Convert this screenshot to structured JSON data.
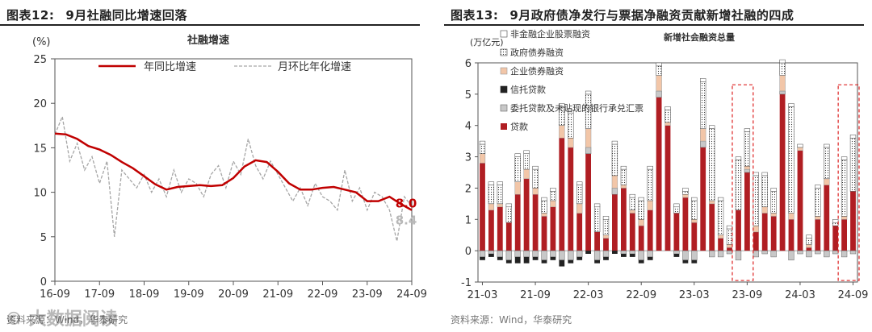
{
  "left": {
    "fig_label": "图表12:",
    "fig_title": "9月社融同比增速回落",
    "source": "资料来源：Wind，华泰研究",
    "chart_data": {
      "type": "line",
      "ylabel": "(%)",
      "subtitle": "社融增速",
      "ylim": [
        0,
        25
      ],
      "yticks": [
        0,
        5,
        10,
        15,
        20,
        25
      ],
      "xticks": [
        "16-09",
        "17-09",
        "18-09",
        "19-09",
        "20-09",
        "21-09",
        "22-09",
        "23-09",
        "24-09"
      ],
      "series": [
        {
          "name": "年同比增速",
          "color": "#c00000",
          "style": "solid",
          "x": [
            0,
            3,
            6,
            9,
            12,
            15,
            18,
            21,
            24,
            27,
            30,
            33,
            36,
            39,
            42,
            45,
            48,
            51,
            54,
            57,
            60,
            63,
            66,
            69,
            72,
            75,
            78,
            81,
            84,
            87,
            90,
            93,
            96
          ],
          "values": [
            16.6,
            16.5,
            16.0,
            15.2,
            14.8,
            14.2,
            13.4,
            12.7,
            11.8,
            10.9,
            10.3,
            10.6,
            10.7,
            10.8,
            10.7,
            10.8,
            11.6,
            12.9,
            13.6,
            13.4,
            12.3,
            11.0,
            10.3,
            10.3,
            10.5,
            10.6,
            10.3,
            10.0,
            9.0,
            9.0,
            9.5,
            8.7,
            8.0
          ]
        },
        {
          "name": "月环比年化增速",
          "color": "#a6a6a6",
          "style": "dashed",
          "x": [
            0,
            2,
            4,
            6,
            8,
            10,
            12,
            14,
            16,
            18,
            20,
            22,
            24,
            26,
            28,
            30,
            32,
            34,
            36,
            38,
            40,
            42,
            44,
            46,
            48,
            50,
            52,
            54,
            56,
            58,
            60,
            62,
            64,
            66,
            68,
            70,
            72,
            74,
            76,
            78,
            80,
            82,
            84,
            86,
            88,
            90,
            92,
            94,
            96
          ],
          "values": [
            16.5,
            18.5,
            13.5,
            15.5,
            12.5,
            14.0,
            11.0,
            13.5,
            5.0,
            12.5,
            11.5,
            10.5,
            12.0,
            10.0,
            11.5,
            9.5,
            12.5,
            10.0,
            11.5,
            11.0,
            9.5,
            12.0,
            13.0,
            10.5,
            13.5,
            12.0,
            16.0,
            13.0,
            11.5,
            13.5,
            12.0,
            10.5,
            9.0,
            10.5,
            8.5,
            11.0,
            9.5,
            9.0,
            8.0,
            12.5,
            9.0,
            10.5,
            8.0,
            10.0,
            9.5,
            8.0,
            4.5,
            9.5,
            8.4
          ]
        }
      ],
      "end_labels": [
        "8.0",
        "8.4"
      ]
    }
  },
  "right": {
    "fig_label": "图表13:",
    "fig_title": "9月政府债净发行与票据净融资贡献新增社融的四成",
    "source": "资料来源：Wind，华泰研究",
    "chart_data": {
      "type": "bar",
      "ylabel": "(万亿元)",
      "subtitle": "新增社会融资总量",
      "ylim": [
        -1,
        6
      ],
      "yticks": [
        -1,
        0,
        1,
        2,
        3,
        4,
        5,
        6
      ],
      "xticks": [
        "21-03",
        "21-09",
        "22-03",
        "22-09",
        "23-03",
        "23-09",
        "24-03",
        "24-09"
      ],
      "categories_count": 43,
      "legend": [
        "非金融企业股票融资",
        "政府债券融资",
        "企业债券融资",
        "信托贷款",
        "委托贷款及未贴现的银行承兑汇票",
        "贷款"
      ],
      "colors": {
        "loans": "#b01e23",
        "entrust": "#c8c8c8",
        "trust": "#222222",
        "corp_bond": "#f2c6a8",
        "gov_bond": "#ffffff",
        "stock": "#ffffff"
      },
      "totals": [
        3.5,
        2.0,
        2.1,
        1.4,
        2.9,
        2.8,
        2.6,
        1.7,
        2.0,
        4.5,
        4.4,
        2.2,
        5.1,
        1.3,
        1.0,
        3.3,
        2.8,
        1.8,
        1.6,
        2.7,
        5.9,
        3.7,
        1.4,
        1.9,
        1.7,
        5.4,
        4.0,
        1.6,
        0.7,
        3.0,
        3.8,
        2.5,
        2.4,
        1.9,
        6.0,
        4.6,
        3.3,
        0.4,
        2.0,
        3.3,
        0.9,
        2.9,
        3.6
      ],
      "loans": [
        2.8,
        1.3,
        1.4,
        0.9,
        1.8,
        2.3,
        1.8,
        1.1,
        1.4,
        3.6,
        3.3,
        1.2,
        3.1,
        0.6,
        0.4,
        1.8,
        2.0,
        1.2,
        0.8,
        1.3,
        4.9,
        4.0,
        1.2,
        1.7,
        0.9,
        3.3,
        1.5,
        0.4,
        0.1,
        1.3,
        2.5,
        0.6,
        1.2,
        1.1,
        5.0,
        1.0,
        3.2,
        0.1,
        1.0,
        2.1,
        0.8,
        1.0,
        1.9
      ],
      "entrust": [
        -0.2,
        -0.1,
        -0.2,
        -0.3,
        -0.2,
        -0.2,
        -0.2,
        -0.3,
        -0.2,
        -0.3,
        -0.3,
        -0.2,
        0.2,
        -0.3,
        -0.2,
        0.2,
        -0.1,
        -0.1,
        -0.3,
        -0.2,
        0.2,
        0.0,
        -0.1,
        -0.3,
        -0.3,
        0.2,
        -0.2,
        -0.2,
        -0.1,
        -0.3,
        0.1,
        -0.2,
        -0.1,
        -0.2,
        0.1,
        -0.3,
        -0.1,
        -0.2,
        -0.1,
        -0.2,
        -0.1,
        -0.2,
        -0.1
      ],
      "trust": [
        -0.1,
        -0.1,
        -0.1,
        -0.1,
        -0.2,
        -0.2,
        -0.1,
        -0.1,
        -0.1,
        -0.2,
        -0.1,
        -0.1,
        -0.1,
        -0.1,
        -0.1,
        -0.1,
        -0.1,
        -0.1,
        -0.1,
        -0.1,
        0.0,
        0.0,
        -0.1,
        -0.1,
        -0.1,
        0.0,
        0.0,
        0.0,
        0.0,
        0.0,
        0.0,
        0.0,
        0.0,
        0.0,
        0.0,
        0.0,
        0.0,
        0.0,
        0.0,
        0.0,
        0.0,
        0.0,
        0.0
      ],
      "corp_bond": [
        0.3,
        0.2,
        0.1,
        0.0,
        0.4,
        0.3,
        0.2,
        0.1,
        0.2,
        0.4,
        0.3,
        0.3,
        0.6,
        0.0,
        0.1,
        0.4,
        0.1,
        0.1,
        0.2,
        0.3,
        0.5,
        0.1,
        0.0,
        0.1,
        0.1,
        0.4,
        0.1,
        0.1,
        0.1,
        0.0,
        0.1,
        0.2,
        0.2,
        0.1,
        0.5,
        0.2,
        0.1,
        0.1,
        0.1,
        0.2,
        0.0,
        0.1,
        0.0
      ],
      "gov_bond": [
        0.3,
        0.6,
        0.6,
        0.5,
        0.8,
        0.5,
        0.6,
        0.4,
        0.3,
        0.6,
        0.8,
        0.6,
        1.1,
        0.8,
        0.5,
        1.0,
        0.5,
        0.4,
        0.6,
        1.0,
        0.3,
        0.4,
        0.2,
        0.1,
        0.6,
        1.5,
        2.3,
        1.1,
        0.5,
        1.6,
        1.1,
        1.6,
        1.0,
        0.7,
        0.4,
        3.4,
        0.0,
        0.2,
        0.9,
        1.0,
        0.1,
        1.8,
        1.7
      ],
      "stock": [
        0.1,
        0.1,
        0.1,
        0.1,
        0.1,
        0.1,
        0.1,
        0.1,
        0.1,
        0.1,
        0.1,
        0.1,
        0.1,
        0.1,
        0.1,
        0.1,
        0.1,
        0.1,
        0.1,
        0.1,
        0.1,
        0.1,
        0.1,
        0.1,
        0.1,
        0.1,
        0.1,
        0.1,
        0.1,
        0.1,
        0.1,
        0.1,
        0.1,
        0.1,
        0.1,
        0.1,
        0.1,
        0.1,
        0.1,
        0.1,
        0.1,
        0.1,
        0.1
      ],
      "highlight_ranges": [
        [
          29,
          30
        ],
        [
          41,
          42
        ]
      ]
    }
  },
  "watermark": "© 大数据阅读"
}
